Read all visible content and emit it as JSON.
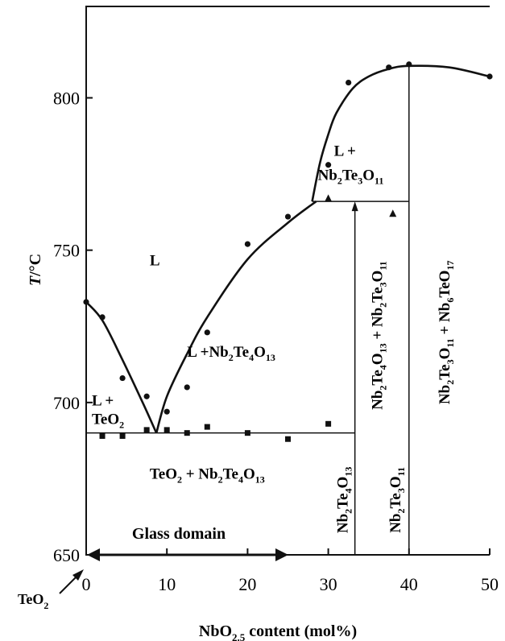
{
  "chart_data": {
    "type": "scatter",
    "title": "",
    "xlabel": {
      "main": "NbO",
      "sub": "2.5",
      "rest": " content (mol%)"
    },
    "ylabel": {
      "italic": "T",
      "rest": "/°C"
    },
    "xlim": [
      0,
      50
    ],
    "ylim": [
      650,
      830
    ],
    "x_ticks": [
      0,
      10,
      20,
      30,
      40,
      50
    ],
    "y_ticks": [
      650,
      700,
      750,
      800
    ],
    "corner_label": {
      "main": "TeO",
      "sub": "2"
    },
    "glass_domain": {
      "label": "Glass domain",
      "from": 0,
      "to": 25
    },
    "series": [
      {
        "marker": "circle",
        "x": [
          0,
          2,
          4.5,
          7.5,
          10,
          12.5,
          15,
          20,
          25,
          30,
          32.5,
          37.5,
          40,
          50
        ],
        "y": [
          733,
          728,
          708,
          702,
          697,
          705,
          723,
          752,
          761,
          778,
          805,
          810,
          811,
          807
        ]
      },
      {
        "marker": "square",
        "x": [
          2,
          4.5,
          7.5,
          10,
          12.5,
          15,
          20,
          25,
          30
        ],
        "y": [
          689,
          689,
          691,
          691,
          690,
          692,
          690,
          688,
          693
        ]
      },
      {
        "marker": "triangle",
        "x": [
          30,
          38
        ],
        "y": [
          767,
          762
        ]
      }
    ],
    "liquidus_curves": [
      {
        "x": [
          0,
          2,
          4.5,
          7,
          8.7
        ],
        "y": [
          733,
          727,
          714,
          700,
          690
        ]
      },
      {
        "x": [
          8.7,
          10,
          12.5,
          15,
          20,
          25,
          28.5
        ],
        "y": [
          690,
          702,
          716,
          728,
          747,
          759,
          766
        ]
      },
      {
        "x": [
          28,
          29,
          30,
          31,
          33,
          35,
          37.5,
          40,
          45,
          50
        ],
        "y": [
          766,
          779,
          788,
          795,
          803,
          807,
          809.5,
          810.5,
          810,
          807
        ]
      }
    ],
    "phase_lines": [
      {
        "x": [
          0,
          33.3
        ],
        "y": [
          690,
          690
        ]
      },
      {
        "x": [
          28,
          40
        ],
        "y": [
          766,
          766
        ]
      },
      {
        "x": [
          33.3,
          33.3
        ],
        "y": [
          650,
          766
        ],
        "arrow": "up"
      },
      {
        "x": [
          40,
          40
        ],
        "y": [
          650,
          811
        ]
      }
    ],
    "regions": [
      {
        "id": "L",
        "parts": [
          {
            "t": "L"
          }
        ],
        "x": 8.5,
        "y": 745,
        "align": "middle"
      },
      {
        "id": "L-TeO2-a",
        "parts": [
          {
            "t": "L +"
          }
        ],
        "x": 0.7,
        "y": 699,
        "align": "start"
      },
      {
        "id": "L-TeO2-b",
        "parts": [
          {
            "t": "TeO"
          },
          {
            "s": "2"
          }
        ],
        "x": 0.7,
        "y": 693,
        "align": "start"
      },
      {
        "id": "L-Nb2Te4O13",
        "parts": [
          {
            "t": "L +Nb"
          },
          {
            "s": "2"
          },
          {
            "t": "Te"
          },
          {
            "s": "4"
          },
          {
            "t": "O"
          },
          {
            "s": "13"
          }
        ],
        "x": 12.5,
        "y": 715,
        "align": "start"
      },
      {
        "id": "L-Nb2Te3O11-a",
        "parts": [
          {
            "t": "L +"
          }
        ],
        "x": 30.7,
        "y": 781,
        "align": "start"
      },
      {
        "id": "L-Nb2Te3O11-b",
        "parts": [
          {
            "t": "Nb"
          },
          {
            "s": "2"
          },
          {
            "t": "Te"
          },
          {
            "s": "3"
          },
          {
            "t": "O"
          },
          {
            "s": "11"
          }
        ],
        "x": 28.7,
        "y": 773,
        "align": "start"
      },
      {
        "id": "TeO2-Nb2Te4O13",
        "parts": [
          {
            "t": "TeO"
          },
          {
            "s": "2"
          },
          {
            "t": " + Nb"
          },
          {
            "s": "2"
          },
          {
            "t": "Te"
          },
          {
            "s": "4"
          },
          {
            "t": "O"
          },
          {
            "s": "13"
          }
        ],
        "x": 15,
        "y": 675,
        "align": "middle"
      },
      {
        "id": "Nb2Te4O13-Nb2Te3O11",
        "parts": [
          {
            "t": "Nb"
          },
          {
            "s": "2"
          },
          {
            "t": "Te"
          },
          {
            "s": "4"
          },
          {
            "t": "O"
          },
          {
            "s": "13"
          },
          {
            "t": " + Nb"
          },
          {
            "s": "2"
          },
          {
            "t": "Te"
          },
          {
            "s": "3"
          },
          {
            "t": "O"
          },
          {
            "s": "11"
          }
        ],
        "x": 36.7,
        "y": 722,
        "align": "middle",
        "rotate": -90
      },
      {
        "id": "Nb2Te3O11-Nb6TeO17",
        "parts": [
          {
            "t": "Nb"
          },
          {
            "s": "2"
          },
          {
            "t": "Te"
          },
          {
            "s": "3"
          },
          {
            "t": "O"
          },
          {
            "s": "11"
          },
          {
            "t": " + Nb"
          },
          {
            "s": "6"
          },
          {
            "t": "TeO"
          },
          {
            "s": "17"
          }
        ],
        "x": 45,
        "y": 723,
        "align": "middle",
        "rotate": -90
      },
      {
        "id": "Nb2Te4O13-line",
        "parts": [
          {
            "t": "Nb"
          },
          {
            "s": "2"
          },
          {
            "t": "Te"
          },
          {
            "s": "4"
          },
          {
            "t": "O"
          },
          {
            "s": "13"
          }
        ],
        "x": 32.4,
        "y": 668,
        "align": "middle",
        "rotate": -90
      },
      {
        "id": "Nb2Te3O11-line",
        "parts": [
          {
            "t": "Nb"
          },
          {
            "s": "2"
          },
          {
            "t": "Te"
          },
          {
            "s": "3"
          },
          {
            "t": "O"
          },
          {
            "s": "11"
          }
        ],
        "x": 38.9,
        "y": 668,
        "align": "middle",
        "rotate": -90
      }
    ]
  }
}
